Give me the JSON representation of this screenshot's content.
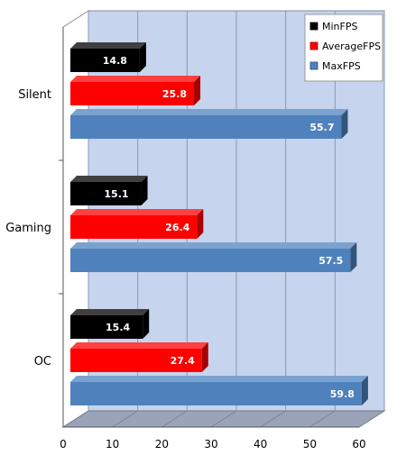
{
  "chart_data": {
    "type": "bar",
    "orientation": "horizontal",
    "style": "3d",
    "categories": [
      "Silent",
      "Gaming",
      "OC"
    ],
    "series": [
      {
        "name": "MinFPS",
        "values": [
          14.8,
          15.1,
          15.4
        ],
        "color": "#000000"
      },
      {
        "name": "AverageFPS",
        "values": [
          25.8,
          26.4,
          27.4
        ],
        "color": "#ff0000"
      },
      {
        "name": "MaxFPS",
        "values": [
          55.7,
          57.5,
          59.8
        ],
        "color": "#4f81bd"
      }
    ],
    "data_labels": true,
    "xlim": [
      0,
      60
    ],
    "x_ticks": [
      0,
      10,
      20,
      30,
      40,
      50,
      60
    ],
    "grid": true,
    "legend_position": "top-right",
    "colors": {
      "back_wall": "#c6d4ee",
      "floor": "#9aa4b8",
      "grid": "#8e98ad"
    }
  }
}
